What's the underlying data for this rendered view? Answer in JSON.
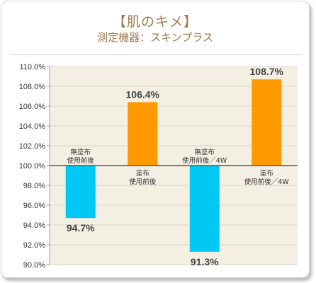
{
  "header": {
    "title": "【肌のキメ】",
    "subtitle": "測定機器：スキンプラス"
  },
  "colors": {
    "plot_background": "#f3efe3",
    "grid": "#ddd5c4",
    "axis": "#999999",
    "baseline": "#555555",
    "title": "#9b7a4e",
    "before_bar": "#00c8f5",
    "after_bar": "#ff9900"
  },
  "chart_data": {
    "type": "bar",
    "title": "【肌のキメ】",
    "subtitle": "測定機器：スキンプラス",
    "xlabel": "",
    "ylabel": "",
    "baseline": 100.0,
    "ylim": [
      90.0,
      110.0
    ],
    "ytick_step": 2.0,
    "yticks": [
      "90.0%",
      "92.0%",
      "94.0%",
      "96.0%",
      "98.0%",
      "100.0%",
      "102.0%",
      "104.0%",
      "106.0%",
      "108.0%",
      "110.0%"
    ],
    "grid": true,
    "legend": "none",
    "categories": [
      "無塗布\n使用前後",
      "塗布\n使用前後",
      "無塗布\n使用前後／4W",
      "塗布\n使用前後／4W"
    ],
    "values": [
      94.7,
      106.4,
      91.3,
      108.7
    ],
    "value_labels": [
      "94.7%",
      "106.4%",
      "91.3%",
      "108.7%"
    ],
    "bar_colors": [
      "#00c8f5",
      "#ff9900",
      "#00c8f5",
      "#ff9900"
    ]
  }
}
